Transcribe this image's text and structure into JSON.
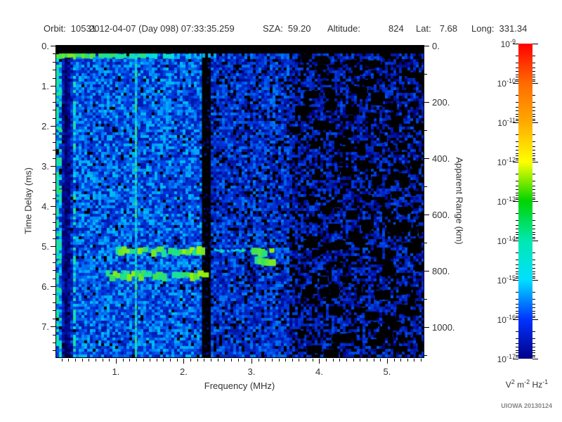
{
  "header": {
    "fields": [
      {
        "label": "Orbit:",
        "value": "10531"
      },
      {
        "label": "",
        "value": "2012-04-07 (Day 098) 07:33:35.259"
      },
      {
        "label": "SZA:",
        "value": "59.20"
      },
      {
        "label": "Altitude:",
        "value": "824"
      },
      {
        "label": "Lat:",
        "value": "7.68"
      },
      {
        "label": "Long:",
        "value": "331.34"
      }
    ]
  },
  "footer": {
    "credit": "UIOWA 20130124"
  },
  "chart_data": {
    "type": "heatmap",
    "subtype": "radar-sounder-ionogram-spectrogram",
    "title": "",
    "grid": false,
    "legend": "colorbar",
    "x_axis": {
      "label": "Frequency (MHz)",
      "lim": [
        0.12,
        5.54
      ],
      "minor_step": 0.1,
      "ticks": [
        {
          "v": 1,
          "label": "1."
        },
        {
          "v": 2,
          "label": "2."
        },
        {
          "v": 3,
          "label": "3."
        },
        {
          "v": 4,
          "label": "4."
        },
        {
          "v": 5,
          "label": "5."
        }
      ]
    },
    "y_axis": {
      "label": "Time Delay (ms)",
      "lim": [
        0,
        7.77
      ],
      "minor_step": 0.2,
      "ticks": [
        {
          "v": 0,
          "label": "0."
        },
        {
          "v": 1,
          "label": "1."
        },
        {
          "v": 2,
          "label": "2."
        },
        {
          "v": 3,
          "label": "3."
        },
        {
          "v": 4,
          "label": "4."
        },
        {
          "v": 5,
          "label": "5."
        },
        {
          "v": 6,
          "label": "6."
        },
        {
          "v": 7,
          "label": "7."
        }
      ]
    },
    "y2_axis": {
      "label": "Apparent Range (km)",
      "lim": [
        0,
        1107
      ],
      "minor_step": 100,
      "ticks": [
        {
          "v": 0,
          "label": "0."
        },
        {
          "v": 200,
          "label": "200."
        },
        {
          "v": 400,
          "label": "400."
        },
        {
          "v": 600,
          "label": "600."
        },
        {
          "v": 800,
          "label": "800."
        },
        {
          "v": 1000,
          "label": "1000."
        }
      ]
    },
    "colorbar": {
      "scale": "log10",
      "exponents": [
        -9,
        -10,
        -11,
        -12,
        -13,
        -14,
        -15,
        -16,
        -17
      ],
      "unit_parts": [
        [
          "V",
          "2"
        ],
        [
          "m",
          "-2"
        ],
        [
          "Hz",
          "-1"
        ]
      ],
      "stops": [
        {
          "pos": 0.0,
          "color": "#ff0000"
        },
        {
          "pos": 0.125,
          "color": "#ff6a00"
        },
        {
          "pos": 0.25,
          "color": "#ffaa00"
        },
        {
          "pos": 0.375,
          "color": "#ffff00"
        },
        {
          "pos": 0.5,
          "color": "#00d400"
        },
        {
          "pos": 0.625,
          "color": "#00e8b0"
        },
        {
          "pos": 0.75,
          "color": "#00e0ff"
        },
        {
          "pos": 0.875,
          "color": "#0033ff"
        },
        {
          "pos": 1.0,
          "color": "#000088"
        }
      ]
    },
    "canvas_colormap": [
      [
        0.0,
        "#000000"
      ],
      [
        0.1,
        "#000080"
      ],
      [
        0.26,
        "#0038e0"
      ],
      [
        0.4,
        "#00a0ff"
      ],
      [
        0.5,
        "#00e0e0"
      ],
      [
        0.6,
        "#30e060"
      ],
      [
        0.7,
        "#a0f000"
      ],
      [
        0.85,
        "#ffff00"
      ],
      [
        1.0,
        "#ff0000"
      ]
    ],
    "render_seed": 12345,
    "noise_regions": [
      {
        "f0": 0.12,
        "f1": 0.4,
        "base": 0.14,
        "var": 0.34,
        "density": 0.97,
        "stripes": [
          1.6,
          1.25,
          0.5,
          0.3,
          0.4,
          0.7,
          1.35,
          1.5,
          1.0,
          0.85
        ]
      },
      {
        "f0": 0.4,
        "f1": 2.27,
        "base": 0.15,
        "var": 0.3,
        "density": 0.96
      },
      {
        "f0": 2.4,
        "f1": 3.55,
        "base": 0.12,
        "var": 0.24,
        "density": 0.85
      },
      {
        "f0": 3.55,
        "f1": 5.54,
        "base": 0.1,
        "var": 0.2,
        "density": 0.6
      }
    ],
    "features": {
      "top_blackout": {
        "t0": 0,
        "t1": 0.19
      },
      "surface_line": {
        "delay_ms": 0.25,
        "f0": 0.12,
        "f1": 2.45
      },
      "quiet_band": {
        "f0": 2.27,
        "f1": 2.4
      },
      "rfi_lines": [
        {
          "f": 1.29,
          "brightness": 0.38
        }
      ],
      "sparse_black": {
        "f0": 3.55,
        "count": 130
      },
      "edge_marks": {
        "f": 0.14,
        "delays": [
          1.15,
          2.1,
          2.85,
          3.6,
          5.3,
          6.05
        ]
      },
      "echo_traces": [
        {
          "name": "ionospheric-echo-1",
          "delay_ms": 5.12,
          "f0": 0.95,
          "f1": 2.28,
          "style": "blobs"
        },
        {
          "name": "ionospheric-echo-1-faint",
          "delay_ms": 5.08,
          "f0": 2.42,
          "f1": 3.02,
          "style": "line"
        },
        {
          "name": "ionospheric-echo-1-end",
          "delay_ms": 5.15,
          "f0": 3.0,
          "f1": 3.27,
          "style": "blobs"
        },
        {
          "name": "ionospheric-echo-1-hook",
          "delay_ms": 5.38,
          "f0": 3.06,
          "f1": 3.27,
          "style": "blobs"
        },
        {
          "name": "ionospheric-echo-2",
          "delay_ms": 5.72,
          "f0": 0.86,
          "f1": 2.3,
          "style": "blobs"
        }
      ]
    }
  }
}
